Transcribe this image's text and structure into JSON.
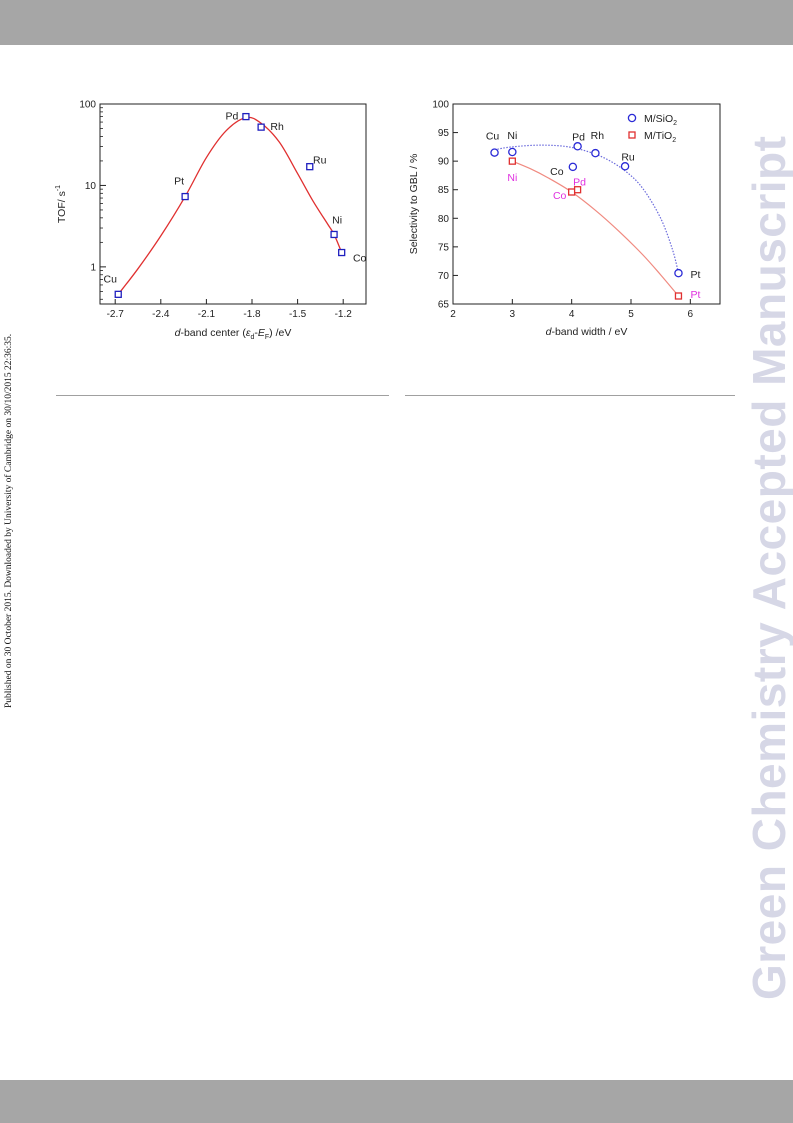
{
  "side_note": "Published on 30 October 2015. Downloaded by University of Cambridge on 30/10/2015 22:36:35.",
  "watermark": "Green Chemistry Accepted Manuscript",
  "chart_data": [
    {
      "type": "scatter",
      "title": "",
      "xlabel": {
        "italic": "d",
        "rest": "-band center (",
        "eps": "ε",
        "sub_d": "d",
        "dash": "-",
        "E": "E",
        "sub_F": "F",
        "tail": ") /eV"
      },
      "ylabel": {
        "main": "TOF/ s",
        "sup": "-1"
      },
      "y_scale": "log",
      "xlim": [
        -2.8,
        -1.05
      ],
      "ylim": [
        0.35,
        100
      ],
      "x_ticks": [
        -2.7,
        -2.4,
        -2.1,
        -1.8,
        -1.5,
        -1.2
      ],
      "x_tick_labels": [
        "-2.7",
        "-2.4",
        "-2.1",
        "-1.8",
        "-1.5",
        "-1.2"
      ],
      "y_ticks": [
        1,
        10,
        100
      ],
      "y_tick_labels": [
        "1",
        "10",
        "100"
      ],
      "series": [
        {
          "marker": "square",
          "color": "#1f1fbf",
          "points": [
            {
              "label": "Cu",
              "x": -2.68,
              "y": 0.46,
              "label_dx": -8,
              "label_dy": -16
            },
            {
              "label": "Pt",
              "x": -2.24,
              "y": 7.3,
              "label_dx": -6,
              "label_dy": -16
            },
            {
              "label": "Pd",
              "x": -1.84,
              "y": 70,
              "label_dx": -14,
              "label_dy": -1
            },
            {
              "label": "Rh",
              "x": -1.74,
              "y": 52,
              "label_dx": 16,
              "label_dy": -1
            },
            {
              "label": "Ru",
              "x": -1.42,
              "y": 17,
              "label_dx": 10,
              "label_dy": -7
            },
            {
              "label": "Ni",
              "x": -1.26,
              "y": 2.5,
              "label_dx": 3,
              "label_dy": -15
            },
            {
              "label": "Co",
              "x": -1.21,
              "y": 1.5,
              "label_dx": 18,
              "label_dy": 5
            }
          ]
        }
      ],
      "fit_curve": {
        "color": "#e03030",
        "points": [
          [
            -2.68,
            0.46
          ],
          [
            -2.55,
            0.95
          ],
          [
            -2.4,
            2.4
          ],
          [
            -2.24,
            7.3
          ],
          [
            -2.1,
            22
          ],
          [
            -1.97,
            47
          ],
          [
            -1.84,
            68
          ],
          [
            -1.74,
            58
          ],
          [
            -1.62,
            34
          ],
          [
            -1.5,
            14
          ],
          [
            -1.4,
            6.5
          ],
          [
            -1.3,
            3.3
          ],
          [
            -1.26,
            2.5
          ],
          [
            -1.21,
            1.5
          ]
        ]
      }
    },
    {
      "type": "scatter",
      "title": "",
      "xlabel": {
        "italic": "d",
        "rest": "-band width / eV"
      },
      "ylabel": "Selectivity to GBL / %",
      "xlim": [
        2,
        6.5
      ],
      "ylim": [
        65,
        100
      ],
      "x_ticks": [
        2,
        3,
        4,
        5,
        6
      ],
      "x_tick_labels": [
        "2",
        "3",
        "4",
        "5",
        "6"
      ],
      "y_ticks": [
        65,
        70,
        75,
        80,
        85,
        90,
        95,
        100
      ],
      "y_tick_labels": [
        "65",
        "70",
        "75",
        "80",
        "85",
        "90",
        "95",
        "100"
      ],
      "legend_position": "top-right",
      "series": [
        {
          "name": "M/SiO",
          "name_sub": "2",
          "marker": "circle",
          "color": "#2a2ad6",
          "label_color": "#222222",
          "points": [
            {
              "label": "Cu",
              "x": 2.7,
              "y": 91.5,
              "label_dx": -2,
              "label_dy": -17
            },
            {
              "label": "Ni",
              "x": 3.0,
              "y": 91.6,
              "label_dx": 0,
              "label_dy": -17
            },
            {
              "label": "Pd",
              "x": 4.1,
              "y": 92.6,
              "label_dx": 1,
              "label_dy": -10
            },
            {
              "label": "Rh",
              "x": 4.4,
              "y": 91.4,
              "label_dx": 2,
              "label_dy": -18
            },
            {
              "label": "Ru",
              "x": 4.9,
              "y": 89.1,
              "label_dx": 3,
              "label_dy": -10
            },
            {
              "label": "Co",
              "x": 4.02,
              "y": 89.0,
              "label_dx": -16,
              "label_dy": 4
            },
            {
              "label": "Pt",
              "x": 5.8,
              "y": 70.4,
              "label_dx": 17,
              "label_dy": 1
            }
          ]
        },
        {
          "name": "M/TiO",
          "name_sub": "2",
          "marker": "square",
          "color": "#e03030",
          "label_color": "#e030e0",
          "points": [
            {
              "label": "Ni",
              "x": 3.0,
              "y": 90.0,
              "label_dx": 0,
              "label_dy": 16
            },
            {
              "label": "Co",
              "x": 4.0,
              "y": 84.6,
              "label_dx": -12,
              "label_dy": 3
            },
            {
              "label": "Pd",
              "x": 4.1,
              "y": 85.0,
              "label_dx": 2,
              "label_dy": -8
            },
            {
              "label": "Pt",
              "x": 5.8,
              "y": 66.4,
              "label_dx": 17,
              "label_dy": -2
            }
          ]
        }
      ],
      "fit_curves": [
        {
          "series": "M/SiO2",
          "color": "#6b6bdc",
          "dashed": true,
          "points": [
            [
              2.7,
              92.0
            ],
            [
              3.0,
              92.5
            ],
            [
              3.5,
              92.8
            ],
            [
              4.0,
              92.4
            ],
            [
              4.5,
              90.8
            ],
            [
              4.9,
              88.3
            ],
            [
              5.2,
              85.2
            ],
            [
              5.5,
              80.0
            ],
            [
              5.7,
              74.5
            ],
            [
              5.8,
              70.4
            ]
          ]
        },
        {
          "series": "M/TiO2",
          "color": "#f08a80",
          "dashed": false,
          "points": [
            [
              3.0,
              90.0
            ],
            [
              3.3,
              88.7
            ],
            [
              3.6,
              87.1
            ],
            [
              4.0,
              84.6
            ],
            [
              4.4,
              81.4
            ],
            [
              4.8,
              77.7
            ],
            [
              5.2,
              73.6
            ],
            [
              5.5,
              70.1
            ],
            [
              5.8,
              66.4
            ]
          ]
        }
      ]
    }
  ]
}
